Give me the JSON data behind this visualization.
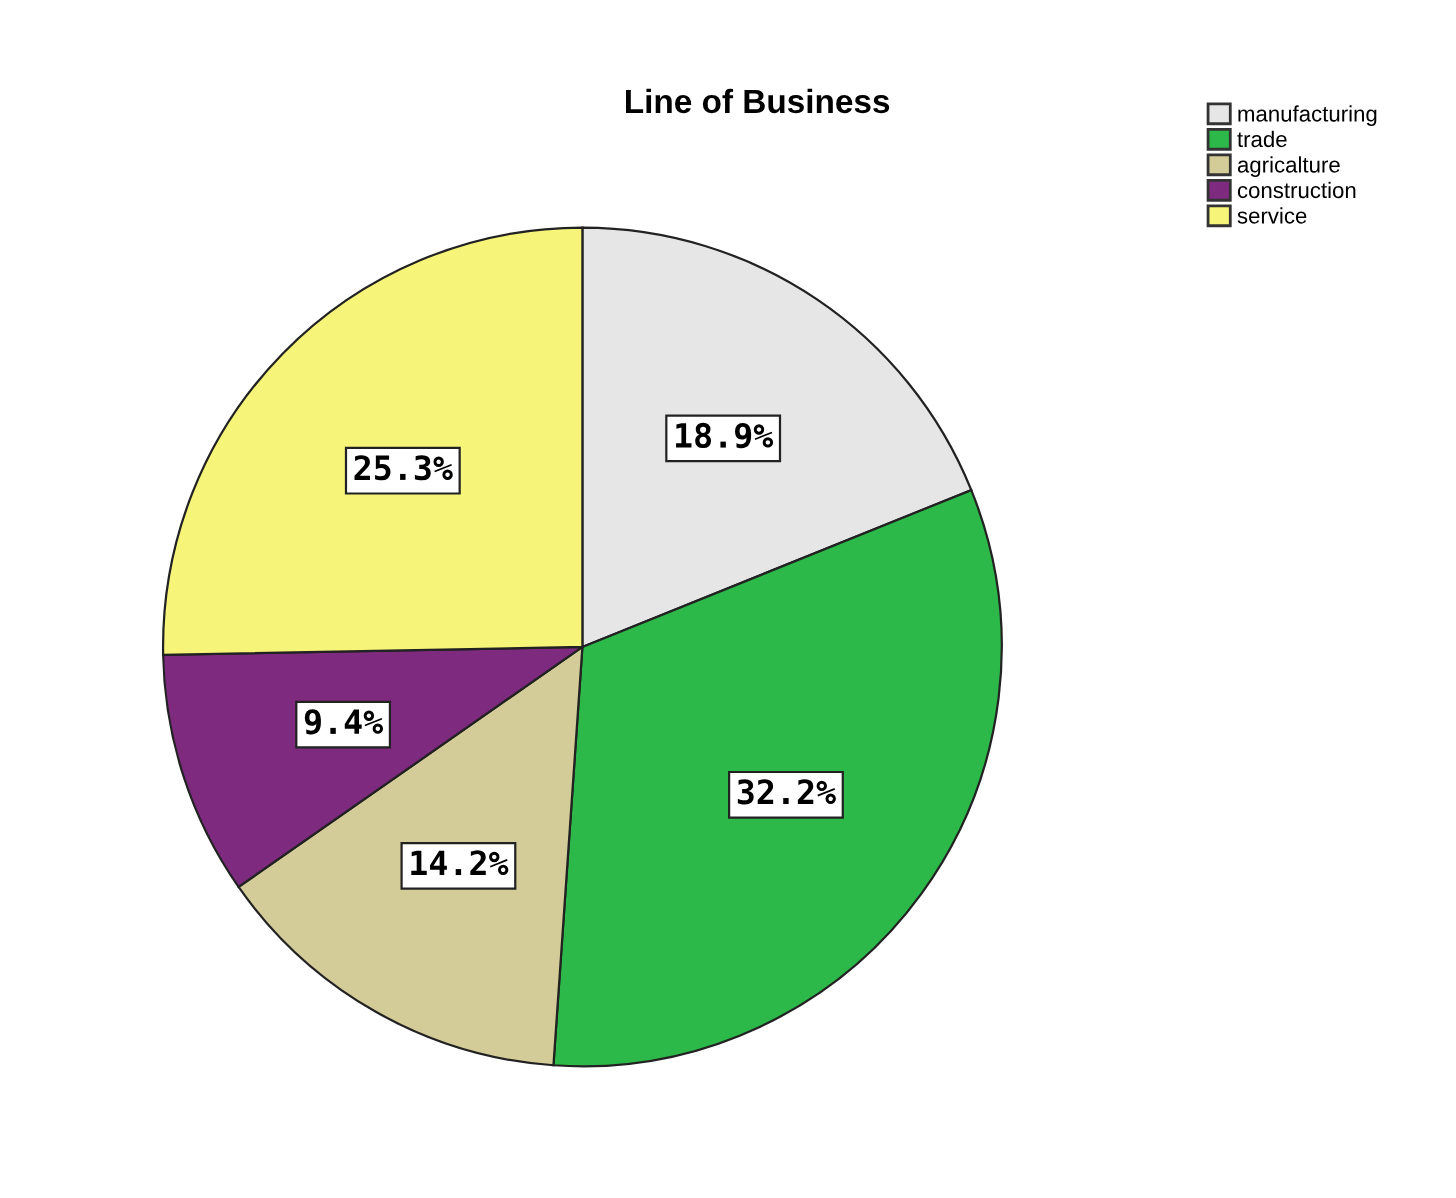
{
  "chart_data": {
    "type": "pie",
    "title": "Line of Business",
    "categories": [
      "manufacturing",
      "trade",
      "agricalture",
      "construction",
      "service"
    ],
    "values": [
      18.9,
      32.2,
      14.2,
      9.4,
      25.3
    ],
    "colors": [
      "#e6e6e6",
      "#2db84a",
      "#d4cc98",
      "#7d2a7f",
      "#f7f47a"
    ],
    "value_labels": [
      "18.9%",
      "32.2%",
      "14.2%",
      "9.4%",
      "25.3%"
    ],
    "legend": "top right"
  }
}
